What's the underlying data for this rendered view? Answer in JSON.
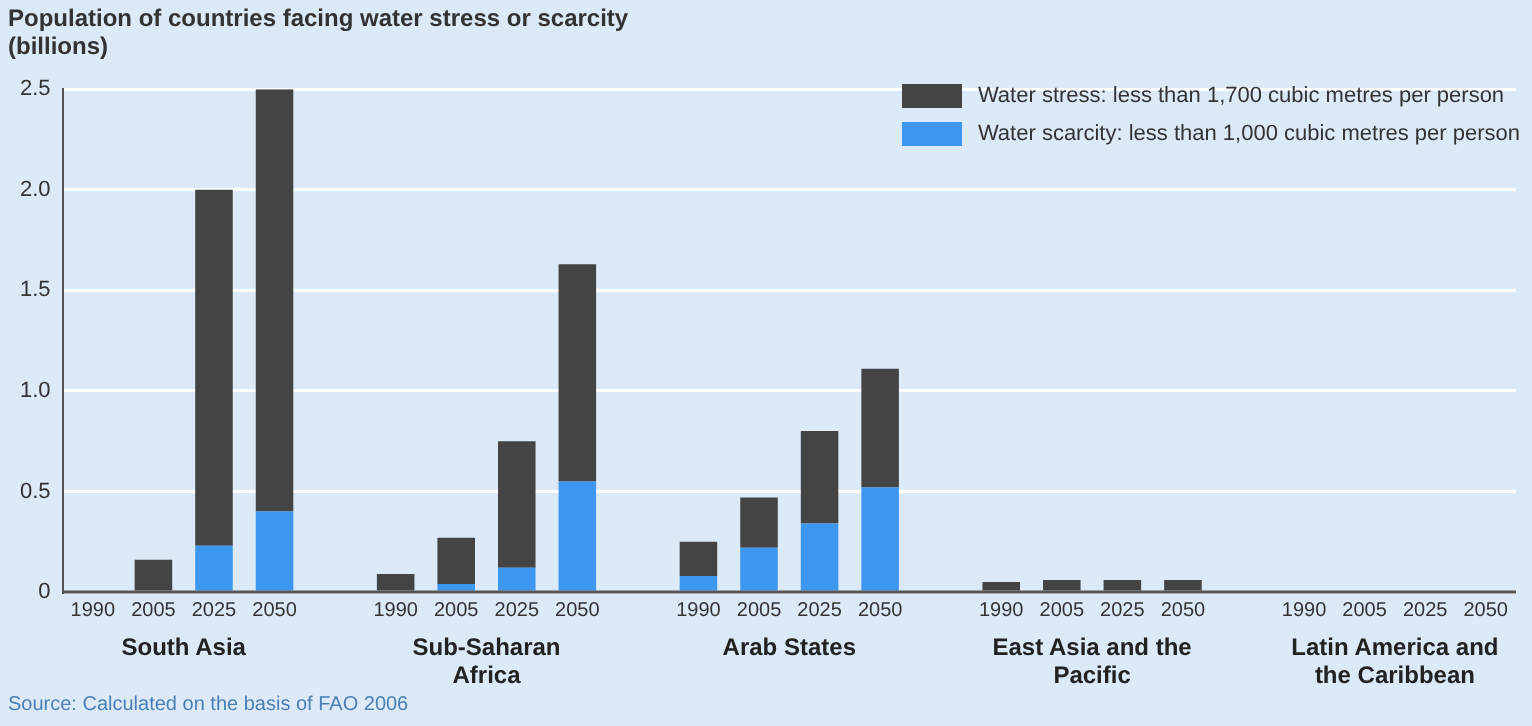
{
  "chart_data": {
    "type": "bar",
    "title": "Population of countries facing water stress or scarcity",
    "ylabel": "(billions)",
    "categories": [
      "1990",
      "2005",
      "2025",
      "2050",
      null,
      "1990",
      "2005",
      "2025",
      "2050",
      null,
      "1990",
      "2005",
      "2025",
      "2050",
      null,
      "1990",
      "2005",
      "2025",
      "2050",
      null,
      "1990",
      "2005",
      "2025",
      "2050"
    ],
    "series": [
      {
        "name": "Water scarcity: less than 1,000 cubic metres per person",
        "color": "#3d96f0",
        "values": [
          0,
          0,
          0.23,
          0.4,
          null,
          0,
          0.04,
          0.12,
          0.55,
          null,
          0.08,
          0.22,
          0.34,
          0.52,
          null,
          0,
          0,
          0,
          0,
          null,
          0,
          0,
          null,
          null
        ]
      },
      {
        "name": "Water stress: less than 1,700 cubic metres per person",
        "color": "#444444",
        "values": [
          0,
          0.16,
          1.77,
          2.1,
          null,
          0.09,
          0.23,
          0.63,
          1.08,
          null,
          0.17,
          0.25,
          0.46,
          0.59,
          null,
          0.05,
          0.06,
          0.06,
          0.06,
          null,
          0,
          null,
          null,
          null
        ]
      }
    ],
    "stacked": true,
    "ylim": [
      0,
      2.5
    ],
    "yticks": [
      0,
      0.5,
      {
        "value": 1,
        "label": "1.0"
      },
      1.5,
      {
        "value": 2,
        "label": "2.0"
      },
      2.5
    ],
    "grid": "y",
    "legend": "top right",
    "annotations": [
      "South Asia",
      "Sub-Saharan Africa",
      "Arab States",
      "East Asia and the Pacific",
      "Latin America and the Caribbean",
      "Source: Calculated on the basis of FAO 2006"
    ]
  }
}
